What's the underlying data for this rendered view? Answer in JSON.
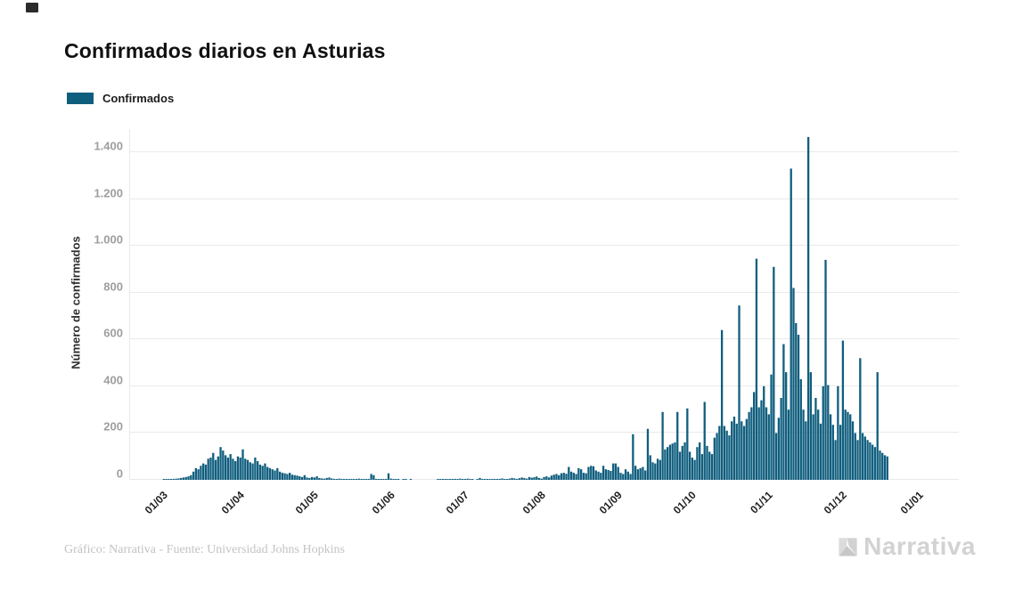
{
  "header": {
    "title": "Confirmados diarios en Asturias"
  },
  "legend": {
    "label": "Confirmados"
  },
  "footer": {
    "credit": "Gráfico: Narrativa - Fuente: Universidad Johns Hopkins",
    "logo_text": "Narrativa"
  },
  "colors": {
    "bar": "#105E7E",
    "grid": "#e9e9e9",
    "y_tick": "#9e9e9e",
    "logo_gray": "#d2d2d2"
  },
  "chart_data": {
    "type": "bar",
    "title": "Confirmados diarios en Asturias",
    "series_name": "Confirmados",
    "xlabel": "",
    "ylabel": "Número de confirmados",
    "grid": true,
    "legend_position": "top-left",
    "ylim": [
      0,
      1500
    ],
    "y_ticks": [
      {
        "value": 0,
        "label": "0"
      },
      {
        "value": 200,
        "label": "200"
      },
      {
        "value": 400,
        "label": "400"
      },
      {
        "value": 600,
        "label": "600"
      },
      {
        "value": 800,
        "label": "800"
      },
      {
        "value": 1000,
        "label": "1.000"
      },
      {
        "value": 1200,
        "label": "1.200"
      },
      {
        "value": 1400,
        "label": "1.400"
      }
    ],
    "x_tick_labels": [
      "01/03",
      "01/04",
      "01/05",
      "01/06",
      "01/07",
      "01/08",
      "01/09",
      "01/10",
      "01/11",
      "01/12",
      "01/01"
    ],
    "start_date": "2020-03-01",
    "values": [
      0,
      1,
      1,
      2,
      3,
      4,
      5,
      6,
      8,
      10,
      12,
      15,
      20,
      35,
      50,
      45,
      60,
      70,
      65,
      90,
      95,
      115,
      85,
      100,
      140,
      125,
      105,
      95,
      110,
      90,
      80,
      100,
      95,
      130,
      90,
      85,
      75,
      70,
      95,
      80,
      65,
      60,
      70,
      55,
      50,
      45,
      40,
      50,
      35,
      30,
      28,
      25,
      30,
      22,
      20,
      18,
      15,
      12,
      20,
      10,
      8,
      12,
      10,
      15,
      8,
      6,
      5,
      8,
      10,
      6,
      4,
      3,
      5,
      4,
      2,
      3,
      2,
      4,
      3,
      2,
      5,
      3,
      2,
      1,
      2,
      25,
      20,
      4,
      3,
      2,
      1,
      2,
      28,
      5,
      3,
      2,
      1,
      0,
      2,
      1,
      0,
      1,
      0,
      0,
      0,
      0,
      0,
      0,
      0,
      0,
      0,
      0,
      1,
      2,
      1,
      3,
      2,
      1,
      2,
      4,
      3,
      5,
      2,
      3,
      5,
      2,
      1,
      0,
      3,
      8,
      4,
      2,
      1,
      2,
      3,
      1,
      2,
      4,
      6,
      3,
      2,
      5,
      8,
      6,
      4,
      7,
      10,
      8,
      5,
      12,
      9,
      11,
      14,
      8,
      5,
      12,
      15,
      10,
      18,
      22,
      25,
      20,
      28,
      30,
      26,
      55,
      35,
      30,
      25,
      50,
      45,
      30,
      28,
      55,
      60,
      58,
      40,
      35,
      30,
      60,
      45,
      42,
      38,
      70,
      70,
      55,
      30,
      25,
      45,
      35,
      25,
      195,
      60,
      45,
      50,
      55,
      40,
      218,
      105,
      75,
      70,
      90,
      85,
      290,
      130,
      140,
      150,
      155,
      160,
      290,
      120,
      145,
      160,
      305,
      120,
      95,
      85,
      140,
      160,
      110,
      333,
      145,
      120,
      110,
      180,
      200,
      230,
      640,
      230,
      210,
      190,
      250,
      270,
      240,
      745,
      250,
      230,
      260,
      290,
      310,
      375,
      945,
      310,
      340,
      400,
      310,
      280,
      450,
      910,
      200,
      265,
      350,
      580,
      460,
      300,
      1330,
      820,
      670,
      620,
      430,
      300,
      250,
      1465,
      460,
      280,
      350,
      300,
      240,
      400,
      940,
      405,
      280,
      235,
      170,
      400,
      235,
      595,
      300,
      290,
      280,
      250,
      200,
      170,
      520,
      200,
      185,
      170,
      160,
      150,
      140,
      460,
      125,
      115,
      105,
      100
    ]
  }
}
